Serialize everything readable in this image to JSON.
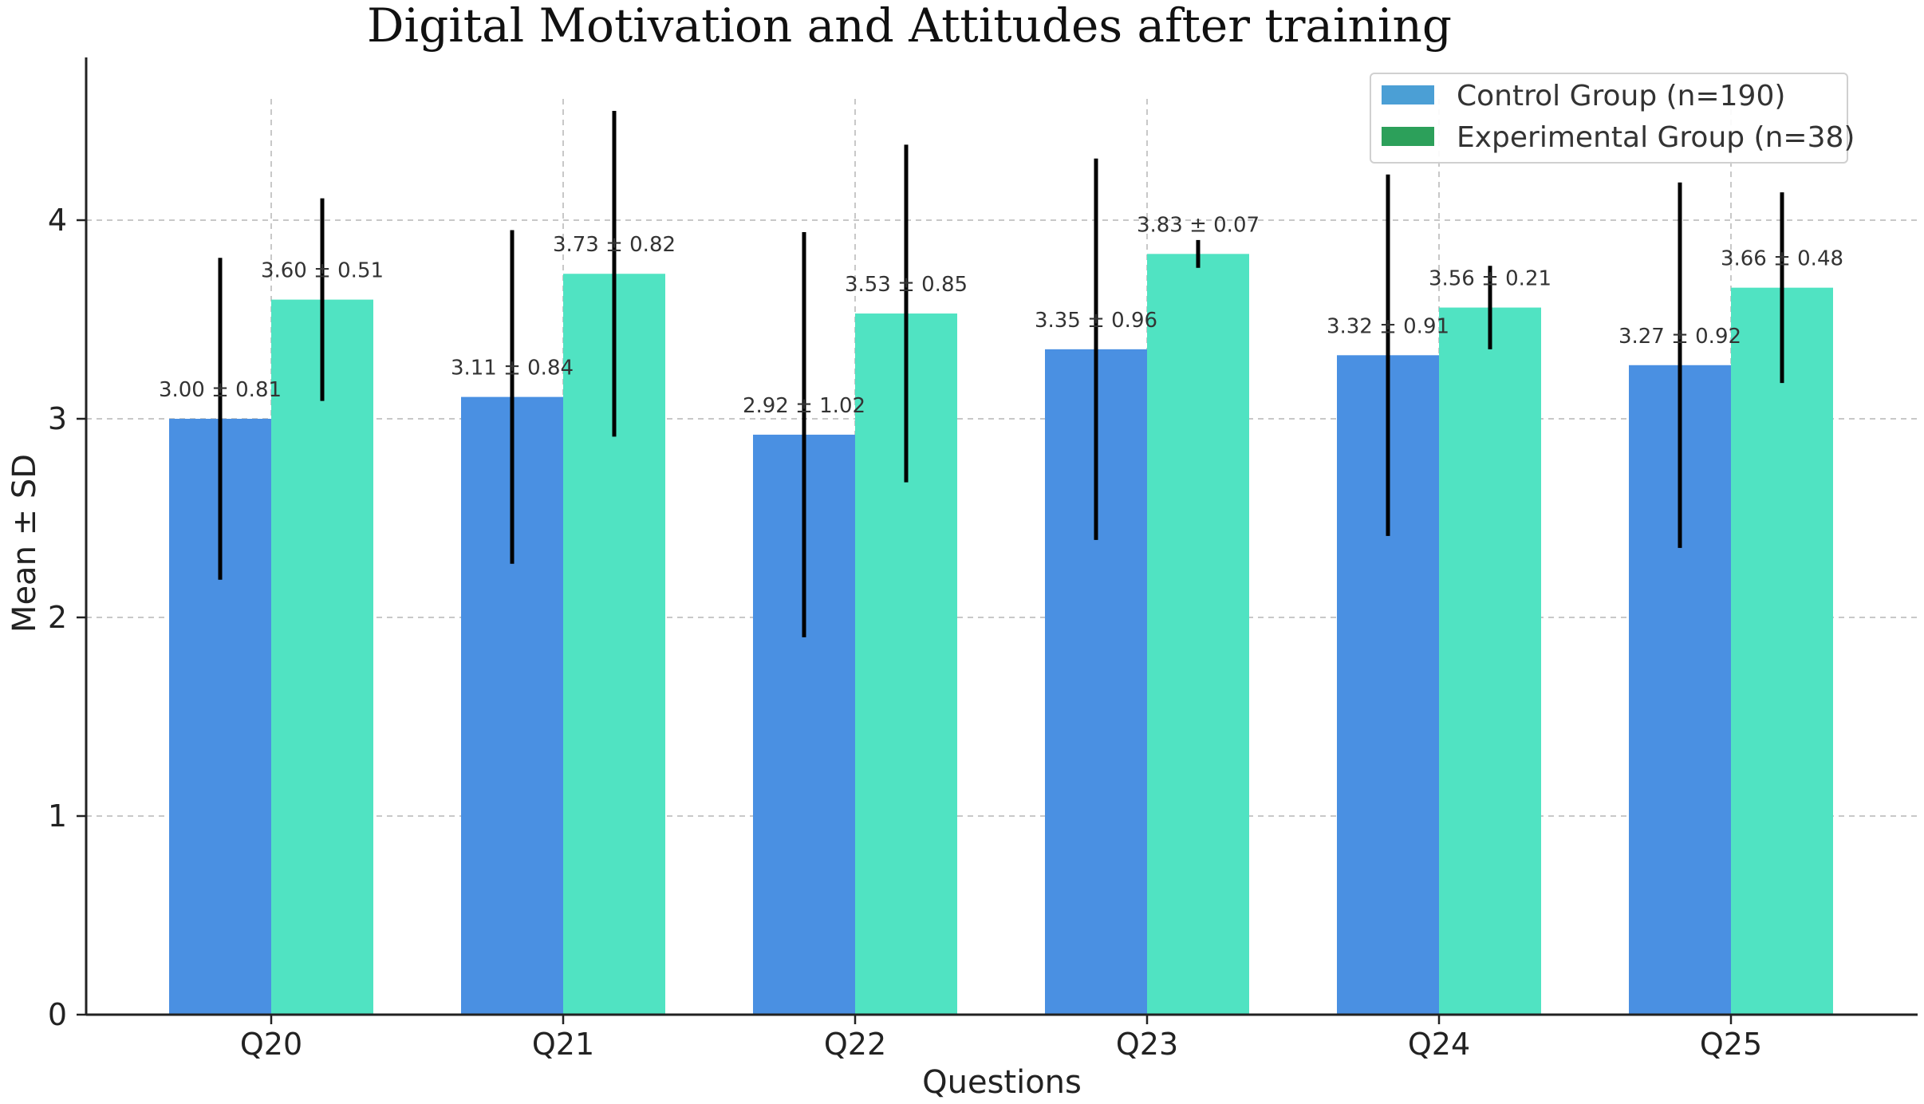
{
  "chart_data": {
    "type": "bar",
    "title": "Digital Motivation and Attitudes after training",
    "xlabel": "Questions",
    "ylabel": "Mean ± SD",
    "ylim": [
      0,
      4.8
    ],
    "yticks": [
      0,
      1,
      2,
      3,
      4
    ],
    "grid": true,
    "legend_position": "top-right",
    "categories": [
      "Q20",
      "Q21",
      "Q22",
      "Q23",
      "Q24",
      "Q25"
    ],
    "series": [
      {
        "name": "Control Group (n=190)",
        "legend_color": "#4b9fd5",
        "bar_color": "#4a90e2",
        "values": [
          3.0,
          3.11,
          2.92,
          3.35,
          3.32,
          3.27
        ],
        "sd": [
          0.81,
          0.84,
          1.02,
          0.96,
          0.91,
          0.92
        ],
        "labels": [
          "3.00 ± 0.81",
          "3.11 ± 0.84",
          "2.92 ± 1.02",
          "3.35 ± 0.96",
          "3.32 ± 0.91",
          "3.27 ± 0.92"
        ]
      },
      {
        "name": "Experimental Group (n=38)",
        "legend_color": "#2ca05a",
        "bar_color": "#50e3c2",
        "values": [
          3.6,
          3.73,
          3.53,
          3.83,
          3.56,
          3.66
        ],
        "sd": [
          0.51,
          0.82,
          0.85,
          0.07,
          0.21,
          0.48
        ],
        "labels": [
          "3.60 ± 0.51",
          "3.73 ± 0.82",
          "3.53 ± 0.85",
          "3.83 ± 0.07",
          "3.56 ± 0.21",
          "3.66 ± 0.48"
        ]
      }
    ]
  }
}
